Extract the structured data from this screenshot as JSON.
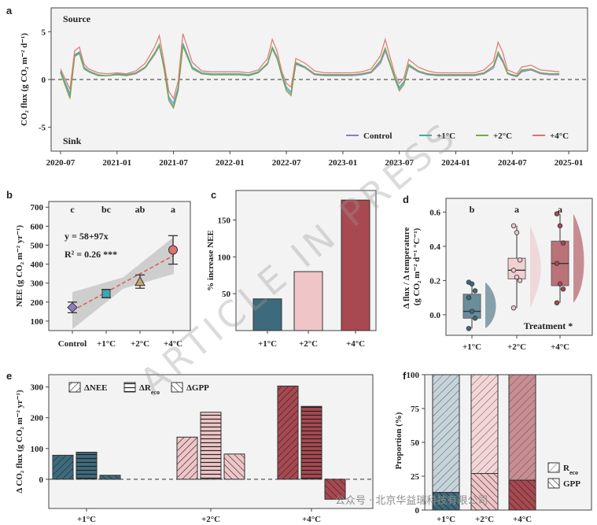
{
  "watermark_text": "ARTICLE IN PRESS",
  "footer_text": "公众号 · 北京华益瑞科技有限公司",
  "colors": {
    "Control": "#8e7cc3",
    "+1°C": "#3aa9b3",
    "+2°C": "#7aa83c",
    "+4°C": "#e0716d",
    "bar1": "#3d6b7d",
    "bar2": "#efc5c8",
    "bar3": "#a84850"
  },
  "panels": {
    "a": {
      "letter": "a",
      "source_label": "Source",
      "sink_label": "Sink"
    },
    "b": {
      "letter": "b",
      "equation": "y = 58+97x",
      "r2": "R² = 0.26 ***"
    },
    "c": {
      "letter": "c"
    },
    "d": {
      "letter": "d",
      "treatment_label": "Treatment *"
    },
    "e": {
      "letter": "e"
    },
    "f": {
      "letter": "f"
    }
  },
  "chart_data": [
    {
      "panel": "a",
      "type": "line",
      "ylabel": "CO₂ flux (g CO₂ m⁻² d⁻¹)",
      "ylim": [
        -7.5,
        7.5
      ],
      "yticks": [
        -5,
        0,
        5
      ],
      "xticks": [
        "2020-07",
        "2021-01",
        "2021-07",
        "2022-01",
        "2022-07",
        "2023-01",
        "2023-07",
        "2024-01",
        "2024-07",
        "2025-01"
      ],
      "xticks_pos": [
        0,
        6,
        12,
        18,
        24,
        30,
        36,
        42,
        48,
        54
      ],
      "xlim": [
        -1,
        56
      ],
      "reference_line": 0,
      "x": [
        0,
        1,
        1.5,
        2,
        2.5,
        3,
        4,
        5,
        6,
        7,
        8,
        9,
        10,
        10.5,
        11,
        11.5,
        12,
        12.5,
        13,
        14,
        15,
        16,
        17,
        18,
        19,
        20,
        21,
        22,
        22.5,
        23,
        23.5,
        24,
        24.5,
        25,
        26,
        27,
        28,
        29,
        30,
        31,
        32,
        33,
        34,
        34.5,
        35,
        35.5,
        36,
        36.5,
        37,
        38,
        39,
        40,
        41,
        42,
        43,
        44,
        45,
        46,
        46.5,
        47,
        47.5,
        48,
        48.5,
        49,
        50,
        51,
        52,
        53
      ],
      "series": [
        {
          "name": "Control",
          "values": [
            0.8,
            -1.8,
            2.5,
            2.8,
            1.2,
            0.8,
            0.4,
            0.4,
            0.5,
            0.4,
            0.6,
            1.2,
            2.6,
            3.5,
            1.2,
            -2.0,
            -2.8,
            -1.0,
            3.6,
            1.2,
            0.6,
            0.5,
            0.5,
            0.5,
            0.5,
            0.4,
            0.7,
            1.6,
            3.2,
            2.2,
            0.5,
            -1.0,
            -1.5,
            1.6,
            1.2,
            0.5,
            0.4,
            0.4,
            0.4,
            0.4,
            0.5,
            0.7,
            1.7,
            3.0,
            1.6,
            0.2,
            -1.0,
            -0.3,
            1.4,
            0.8,
            0.5,
            0.4,
            0.4,
            0.4,
            0.4,
            0.4,
            0.6,
            1.2,
            2.6,
            1.8,
            0.6,
            0.4,
            0.3,
            0.8,
            1.0,
            0.6,
            0.5,
            0.5
          ]
        },
        {
          "name": "+1°C",
          "values": [
            0.9,
            -1.5,
            2.6,
            2.9,
            1.3,
            0.9,
            0.5,
            0.4,
            0.6,
            0.5,
            0.7,
            1.3,
            2.8,
            3.7,
            1.3,
            -1.8,
            -2.5,
            -0.8,
            3.8,
            1.3,
            0.7,
            0.6,
            0.6,
            0.6,
            0.6,
            0.5,
            0.8,
            1.7,
            3.4,
            2.4,
            0.6,
            -0.8,
            -1.3,
            1.7,
            1.3,
            0.6,
            0.5,
            0.5,
            0.5,
            0.5,
            0.6,
            0.8,
            1.9,
            3.2,
            1.8,
            0.3,
            -0.8,
            -0.2,
            1.5,
            0.9,
            0.6,
            0.5,
            0.5,
            0.5,
            0.5,
            0.5,
            0.7,
            1.4,
            2.8,
            2.0,
            0.7,
            0.5,
            0.4,
            0.9,
            1.1,
            0.7,
            0.6,
            0.6
          ]
        },
        {
          "name": "+2°C",
          "values": [
            0.7,
            -2.0,
            2.4,
            2.7,
            1.1,
            0.8,
            0.4,
            0.4,
            0.5,
            0.4,
            0.7,
            1.3,
            2.7,
            3.6,
            1.1,
            -2.2,
            -3.0,
            -1.2,
            3.5,
            1.1,
            0.6,
            0.5,
            0.5,
            0.5,
            0.5,
            0.4,
            0.7,
            1.7,
            3.3,
            2.3,
            0.4,
            -1.2,
            -1.7,
            1.8,
            1.3,
            0.6,
            0.5,
            0.5,
            0.5,
            0.5,
            0.6,
            0.8,
            2.0,
            3.3,
            1.7,
            0.1,
            -1.2,
            -0.5,
            1.6,
            0.9,
            0.6,
            0.5,
            0.5,
            0.5,
            0.5,
            0.5,
            0.7,
            1.4,
            2.9,
            2.0,
            0.6,
            0.5,
            0.4,
            1.0,
            1.1,
            0.7,
            0.6,
            0.6
          ]
        },
        {
          "name": "+4°C",
          "values": [
            1.1,
            -1.0,
            3.0,
            3.4,
            1.6,
            1.1,
            0.7,
            0.6,
            0.7,
            0.6,
            0.9,
            1.7,
            3.4,
            4.6,
            1.8,
            -1.2,
            -2.0,
            -0.2,
            4.8,
            1.8,
            0.9,
            0.8,
            0.8,
            0.8,
            0.8,
            0.7,
            1.0,
            2.2,
            4.2,
            3.0,
            0.9,
            -0.4,
            -0.8,
            2.2,
            1.7,
            0.9,
            0.7,
            0.7,
            0.7,
            0.7,
            0.8,
            1.1,
            2.5,
            4.2,
            2.4,
            0.6,
            -0.4,
            0.2,
            2.1,
            1.3,
            0.9,
            0.7,
            0.7,
            0.7,
            0.7,
            0.7,
            1.0,
            1.9,
            3.9,
            2.8,
            1.0,
            0.8,
            0.6,
            1.3,
            1.5,
            1.0,
            0.9,
            0.8
          ]
        }
      ],
      "legend": [
        "Control",
        "+1°C",
        "+2°C",
        "+4°C"
      ],
      "legend_position": "bottom-right",
      "grid": false
    },
    {
      "panel": "b",
      "type": "scatter",
      "ylabel": "NEE (g CO₂ m⁻² yr⁻¹)",
      "categories": [
        "Control",
        "+1°C",
        "+2°C",
        "+4°C"
      ],
      "values": [
        172,
        245,
        308,
        475
      ],
      "error": [
        28,
        22,
        35,
        75
      ],
      "letters": [
        "c",
        "bc",
        "ab",
        "a"
      ],
      "ylim": [
        50,
        730
      ],
      "yticks": [
        100,
        200,
        300,
        400,
        500,
        600,
        700
      ],
      "trend": {
        "intercept": 58,
        "slope": 97
      },
      "grid": false
    },
    {
      "panel": "c",
      "type": "bar",
      "ylabel": "% increase NEE",
      "categories": [
        "+1°C",
        "+2°C",
        "+4°C"
      ],
      "values": [
        43,
        80,
        177
      ],
      "ylim": [
        0,
        190
      ],
      "yticks": [
        50,
        100,
        150
      ],
      "grid": false
    },
    {
      "panel": "d",
      "type": "box",
      "ylabel": "Δ flux / Δ temperature (g CO₂ m⁻² d⁻¹ °C⁻¹)",
      "categories": [
        "+1°C",
        "+2°C",
        "+4°C"
      ],
      "letters": [
        "b",
        "a",
        "a"
      ],
      "ylim": [
        -0.12,
        0.68
      ],
      "yticks": [
        0.0,
        0.2,
        0.4,
        0.6
      ],
      "boxes": [
        {
          "min": -0.08,
          "q1": -0.02,
          "median": 0.02,
          "q3": 0.12,
          "max": 0.19
        },
        {
          "min": 0.04,
          "q1": 0.21,
          "median": 0.26,
          "q3": 0.33,
          "max": 0.52
        },
        {
          "min": 0.07,
          "q1": 0.17,
          "median": 0.3,
          "q3": 0.43,
          "max": 0.59
        }
      ],
      "points": [
        [
          0.19,
          0.18,
          0.14,
          0.1,
          0.02,
          -0.02,
          -0.08
        ],
        [
          0.52,
          0.48,
          0.32,
          0.26,
          0.22,
          0.2,
          0.04
        ],
        [
          0.59,
          0.52,
          0.42,
          0.3,
          0.18,
          0.15,
          0.07
        ]
      ],
      "grid": false
    },
    {
      "panel": "e",
      "type": "bar",
      "ylabel": "Δ CO₂ flux (g CO₂ m⁻² yr⁻¹)",
      "categories": [
        "+1°C",
        "+2°C",
        "+4°C"
      ],
      "series": [
        {
          "name": "ΔNEE",
          "values": [
            78,
            137,
            303
          ]
        },
        {
          "name": "ΔR",
          "subscript": "eco",
          "values": [
            88,
            218,
            237
          ]
        },
        {
          "name": "ΔGPP",
          "values": [
            13,
            82,
            -65
          ]
        }
      ],
      "ylim": [
        -95,
        340
      ],
      "yticks": [
        0,
        100,
        200,
        300
      ],
      "legend_position": "top-left",
      "grid": false
    },
    {
      "panel": "f",
      "type": "bar",
      "stacked": true,
      "ylabel": "Proportion (%)",
      "categories": [
        "+1°C",
        "+2°C",
        "+4°C"
      ],
      "series": [
        {
          "name": "GPP",
          "values": [
            13,
            27,
            22
          ]
        },
        {
          "name": "R",
          "subscript": "eco",
          "values": [
            87,
            73,
            78
          ]
        }
      ],
      "ylim": [
        0,
        100
      ],
      "yticks": [
        0,
        25,
        50,
        75,
        100
      ],
      "legend_position": "bottom-right",
      "grid": false
    }
  ]
}
